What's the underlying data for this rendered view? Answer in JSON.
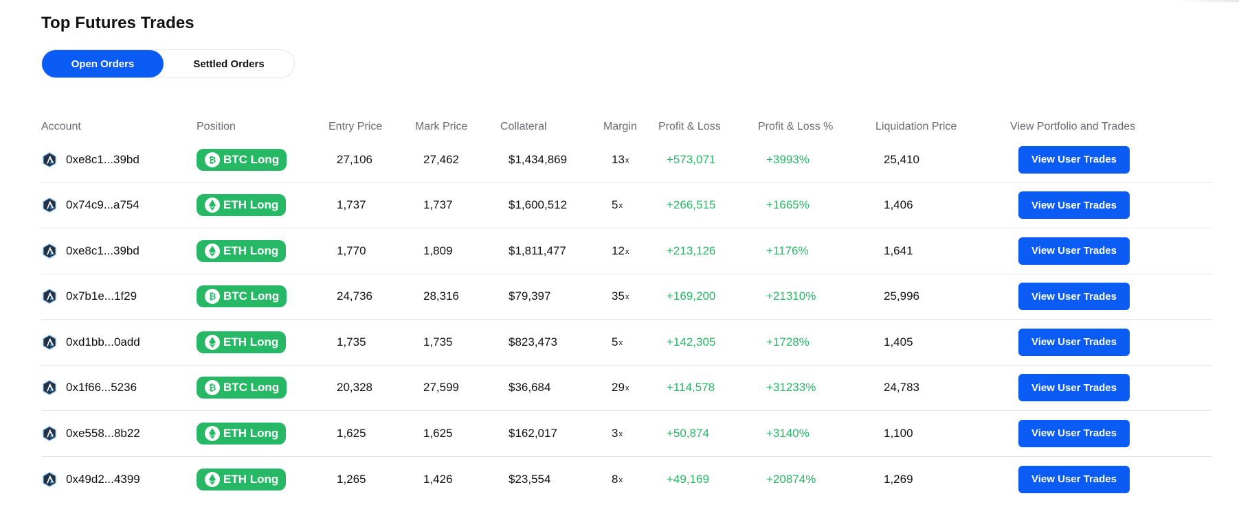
{
  "page": {
    "title": "Top Futures Trades"
  },
  "tabs": {
    "open": "Open Orders",
    "settled": "Settled Orders"
  },
  "colors": {
    "accent": "#0a5cf5",
    "positive": "#26b865"
  },
  "table": {
    "headers": {
      "account": "Account",
      "position": "Position",
      "entry": "Entry Price",
      "mark": "Mark Price",
      "collateral": "Collateral",
      "margin": "Margin",
      "pl": "Profit & Loss",
      "pl_pct": "Profit & Loss %",
      "liquidation": "Liquidation Price",
      "view": "View Portfolio and Trades"
    },
    "rows": [
      {
        "account": "0xe8c1...39bd",
        "coin": "btc",
        "position": "BTC Long",
        "entry": "27,106",
        "mark": "27,462",
        "collateral": "$1,434,869",
        "margin": "13",
        "margin_suffix": "x",
        "pl": "+573,071",
        "pl_pct": "+3993%",
        "liquidation": "25,410",
        "button": "View User Trades"
      },
      {
        "account": "0x74c9...a754",
        "coin": "eth",
        "position": "ETH Long",
        "entry": "1,737",
        "mark": "1,737",
        "collateral": "$1,600,512",
        "margin": "5",
        "margin_suffix": "x",
        "pl": "+266,515",
        "pl_pct": "+1665%",
        "liquidation": "1,406",
        "button": "View User Trades"
      },
      {
        "account": "0xe8c1...39bd",
        "coin": "eth",
        "position": "ETH Long",
        "entry": "1,770",
        "mark": "1,809",
        "collateral": "$1,811,477",
        "margin": "12",
        "margin_suffix": "x",
        "pl": "+213,126",
        "pl_pct": "+1176%",
        "liquidation": "1,641",
        "button": "View User Trades"
      },
      {
        "account": "0x7b1e...1f29",
        "coin": "btc",
        "position": "BTC Long",
        "entry": "24,736",
        "mark": "28,316",
        "collateral": "$79,397",
        "margin": "35",
        "margin_suffix": "x",
        "pl": "+169,200",
        "pl_pct": "+21310%",
        "liquidation": "25,996",
        "button": "View User Trades"
      },
      {
        "account": "0xd1bb...0add",
        "coin": "eth",
        "position": "ETH Long",
        "entry": "1,735",
        "mark": "1,735",
        "collateral": "$823,473",
        "margin": "5",
        "margin_suffix": "x",
        "pl": "+142,305",
        "pl_pct": "+1728%",
        "liquidation": "1,405",
        "button": "View User Trades"
      },
      {
        "account": "0x1f66...5236",
        "coin": "btc",
        "position": "BTC Long",
        "entry": "20,328",
        "mark": "27,599",
        "collateral": "$36,684",
        "margin": "29",
        "margin_suffix": "x",
        "pl": "+114,578",
        "pl_pct": "+31233%",
        "liquidation": "24,783",
        "button": "View User Trades"
      },
      {
        "account": "0xe558...8b22",
        "coin": "eth",
        "position": "ETH Long",
        "entry": "1,625",
        "mark": "1,625",
        "collateral": "$162,017",
        "margin": "3",
        "margin_suffix": "x",
        "pl": "+50,874",
        "pl_pct": "+3140%",
        "liquidation": "1,100",
        "button": "View User Trades"
      },
      {
        "account": "0x49d2...4399",
        "coin": "eth",
        "position": "ETH Long",
        "entry": "1,265",
        "mark": "1,426",
        "collateral": "$23,554",
        "margin": "8",
        "margin_suffix": "x",
        "pl": "+49,169",
        "pl_pct": "+20874%",
        "liquidation": "1,269",
        "button": "View User Trades"
      }
    ]
  }
}
